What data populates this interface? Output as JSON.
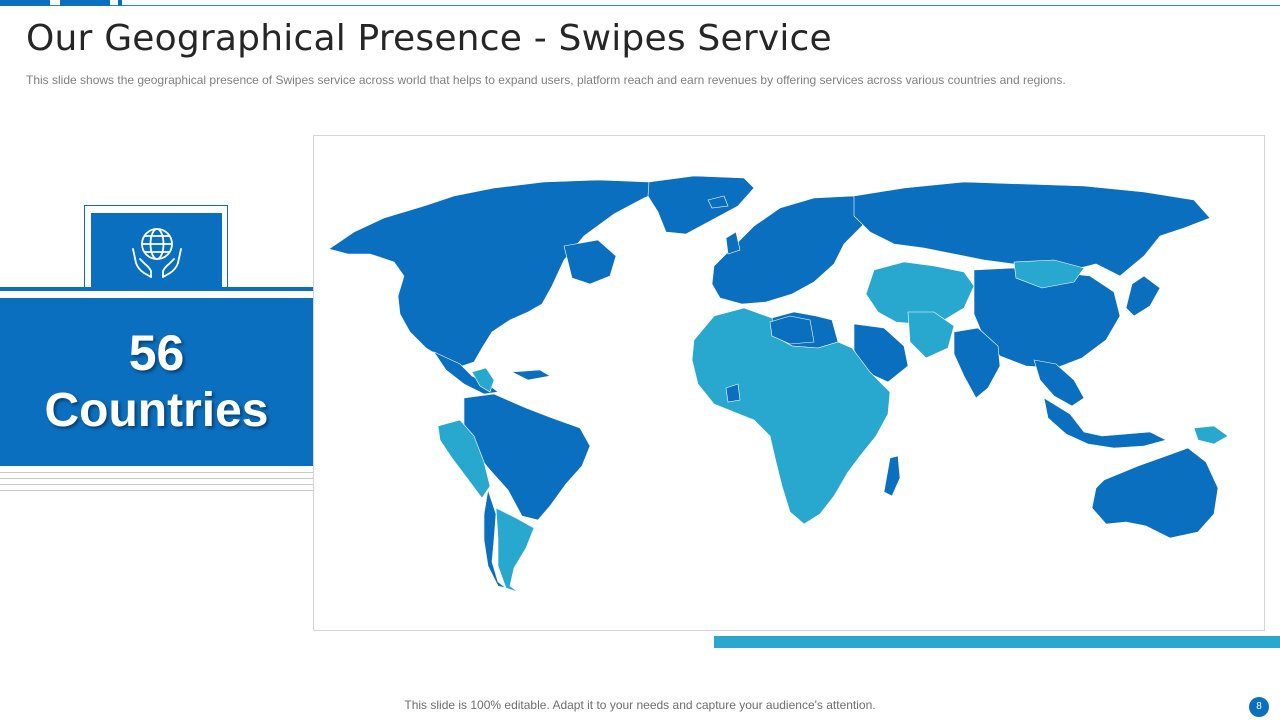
{
  "slide": {
    "title": "Our Geographical Presence - Swipes Service",
    "subtitle": "This slide shows the geographical  presence of Swipes service  across world that helps to expand users,  platform reach and earn revenues  by offering  services across various  countries and regions."
  },
  "stat": {
    "number": "56",
    "label": "Countries",
    "icon": "globe-in-hands-icon"
  },
  "map": {
    "legend_colors": {
      "primary": "#0b6fbf",
      "secondary": "#29a8cf"
    }
  },
  "footer": {
    "text": "This slide is 100% editable. Adapt it to your needs and capture your audience's attention.",
    "page_number": "8"
  }
}
